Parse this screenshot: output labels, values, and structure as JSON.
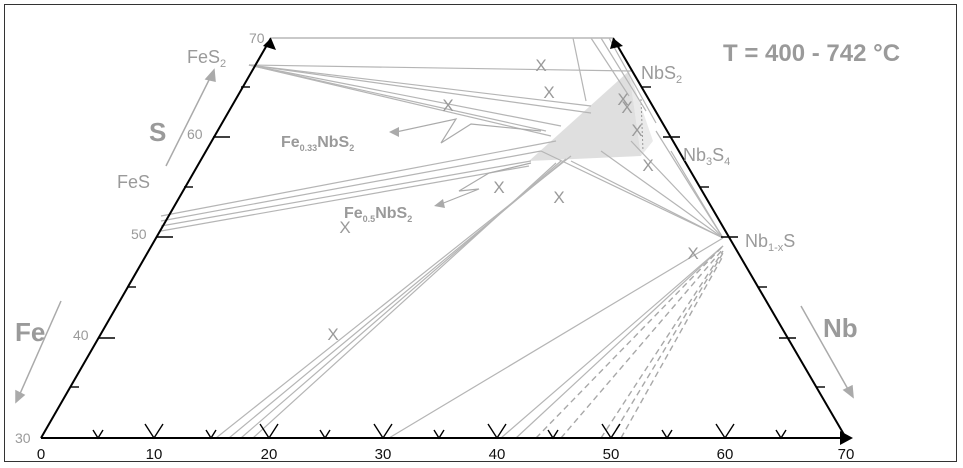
{
  "title": "T = 400 - 742 °C",
  "axes": {
    "s_label": "S",
    "fe_label": "Fe",
    "nb_label": "Nb",
    "bottom_ticks": [
      "0",
      "10",
      "20",
      "30",
      "40",
      "50",
      "60",
      "70"
    ],
    "left_ticks": [
      "30",
      "40",
      "50",
      "60",
      "70"
    ]
  },
  "phases": {
    "fes2": {
      "base": "FeS",
      "sub": "2"
    },
    "fes": {
      "base": "FeS"
    },
    "nbs2": {
      "base": "NbS",
      "sub": "2"
    },
    "nb3s4": {
      "base": "Nb",
      "sub1": "3",
      "mid": "S",
      "sub2": "4"
    },
    "nb1xs": {
      "base": "Nb",
      "sub": "1-x",
      "tail": "S"
    },
    "fe033": {
      "base": "Fe",
      "sub": "0.33",
      "mid": "NbS",
      "sub2": "2"
    },
    "fe05": {
      "base": "Fe",
      "sub": "0.5",
      "mid": "NbS",
      "sub2": "2"
    }
  },
  "marker": "X",
  "colors": {
    "frame": "#000000",
    "tie_line": "#b4b4b4",
    "label": "#9a9a9a",
    "region_fill": "#d2d2d2"
  }
}
